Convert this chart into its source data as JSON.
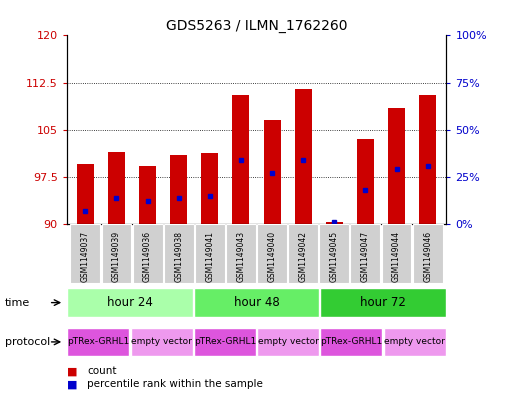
{
  "title": "GDS5263 / ILMN_1762260",
  "samples": [
    "GSM1149037",
    "GSM1149039",
    "GSM1149036",
    "GSM1149038",
    "GSM1149041",
    "GSM1149043",
    "GSM1149040",
    "GSM1149042",
    "GSM1149045",
    "GSM1149047",
    "GSM1149044",
    "GSM1149046"
  ],
  "count_values": [
    99.5,
    101.5,
    99.3,
    101.0,
    101.3,
    110.5,
    106.5,
    111.5,
    90.3,
    103.5,
    108.5,
    110.5
  ],
  "percentile_values": [
    7,
    14,
    12,
    14,
    15,
    34,
    27,
    34,
    1,
    18,
    29,
    31
  ],
  "y_min": 90,
  "y_max": 120,
  "y_ticks": [
    90,
    97.5,
    105,
    112.5,
    120
  ],
  "y2_ticks": [
    0,
    25,
    50,
    75,
    100
  ],
  "y2_tick_positions": [
    90,
    97.5,
    105,
    112.5,
    120
  ],
  "bar_color": "#cc0000",
  "dot_color": "#0000cc",
  "time_groups": [
    {
      "label": "hour 24",
      "start": 0,
      "end": 4,
      "color": "#aaffaa"
    },
    {
      "label": "hour 48",
      "start": 4,
      "end": 8,
      "color": "#66ee66"
    },
    {
      "label": "hour 72",
      "start": 8,
      "end": 12,
      "color": "#33cc33"
    }
  ],
  "protocol_groups": [
    {
      "label": "pTRex-GRHL1",
      "start": 0,
      "end": 2,
      "color": "#dd55dd"
    },
    {
      "label": "empty vector",
      "start": 2,
      "end": 4,
      "color": "#ee99ee"
    },
    {
      "label": "pTRex-GRHL1",
      "start": 4,
      "end": 6,
      "color": "#dd55dd"
    },
    {
      "label": "empty vector",
      "start": 6,
      "end": 8,
      "color": "#ee99ee"
    },
    {
      "label": "pTRex-GRHL1",
      "start": 8,
      "end": 10,
      "color": "#dd55dd"
    },
    {
      "label": "empty vector",
      "start": 10,
      "end": 12,
      "color": "#ee99ee"
    }
  ],
  "bg_color": "#ffffff",
  "tick_label_color_left": "#cc0000",
  "tick_label_color_right": "#0000cc"
}
